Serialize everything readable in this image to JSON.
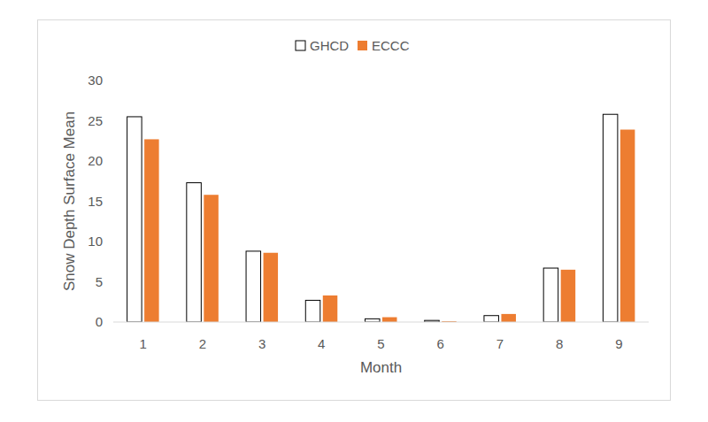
{
  "chart_data": {
    "type": "bar",
    "x_label": "Month",
    "y_label": "Snow Depth Surface Mean",
    "categories": [
      "1",
      "2",
      "3",
      "4",
      "5",
      "6",
      "7",
      "8",
      "9"
    ],
    "series": [
      {
        "name": "GHCD",
        "color": "#ffffff",
        "values": [
          25.5,
          17.3,
          8.8,
          2.7,
          0.4,
          0.2,
          0.8,
          6.7,
          25.8
        ]
      },
      {
        "name": "ECCC",
        "color": "#ed7d31",
        "values": [
          22.7,
          15.8,
          8.6,
          3.3,
          0.6,
          0.1,
          1.0,
          6.5,
          23.9
        ]
      }
    ],
    "ylim": [
      0,
      30
    ],
    "yticks": [
      0,
      5,
      10,
      15,
      20,
      25,
      30
    ],
    "grid": false,
    "legend": "top"
  }
}
